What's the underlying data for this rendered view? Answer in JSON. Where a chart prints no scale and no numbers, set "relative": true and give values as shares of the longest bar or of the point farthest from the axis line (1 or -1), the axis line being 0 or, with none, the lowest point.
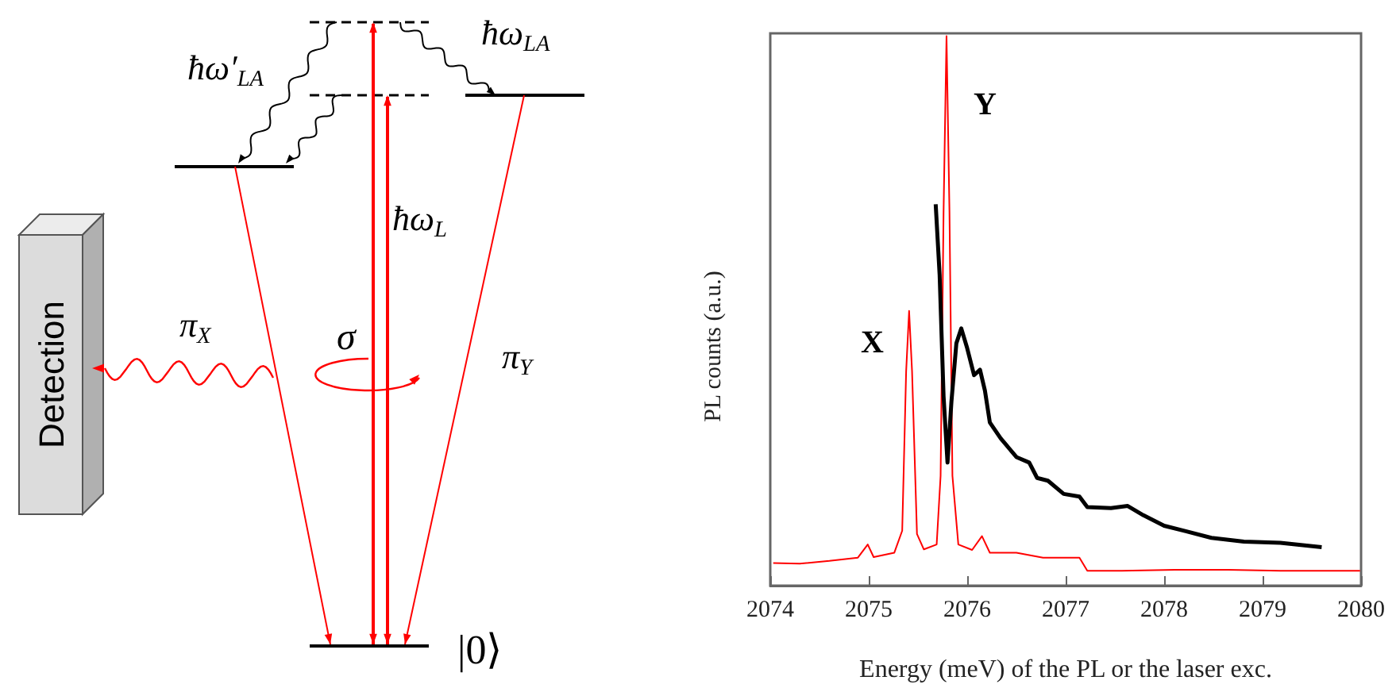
{
  "chart_data": [
    {
      "type": "other",
      "annotations": [
        "ħω′$_{LA}$",
        "ħω$_{LA}$",
        "ħω$_{L}$",
        "π$_{X}$",
        "σ",
        "π$_{Y}$",
        "Detection",
        "|0⟩"
      ]
    },
    {
      "type": "line",
      "xlabel": "Energy (meV) of the PL or the laser exc.",
      "ylabel": "PL counts (a.u.)",
      "relative": true,
      "xlim": [
        2074,
        2080
      ],
      "xticks": [
        2074,
        2075,
        2076,
        2077,
        2078,
        2079,
        2080
      ],
      "grid": false,
      "marker": "none",
      "tick_labels": "x",
      "series": [
        {
          "color": "#ff0000",
          "x": [
            2074.03,
            2074.3,
            2074.6,
            2074.89,
            2074.99,
            2075.05,
            2075.26,
            2075.34,
            2075.38,
            2075.41,
            2075.44,
            2075.49,
            2075.56,
            2075.69,
            2075.73,
            2075.76,
            2075.79,
            2075.82,
            2075.85,
            2075.91,
            2076.05,
            2076.15,
            2076.23,
            2076.5,
            2076.77,
            2077.14,
            2077.22,
            2077.57,
            2078.11,
            2078.65,
            2079.18,
            2079.99
          ],
          "values": [
            0.041,
            0.04,
            0.045,
            0.051,
            0.075,
            0.052,
            0.06,
            0.1,
            0.39,
            0.5,
            0.39,
            0.094,
            0.066,
            0.075,
            0.2,
            0.68,
            1.0,
            0.68,
            0.2,
            0.075,
            0.065,
            0.09,
            0.06,
            0.06,
            0.051,
            0.051,
            0.027,
            0.027,
            0.029,
            0.029,
            0.027,
            0.027
          ]
        },
        {
          "color": "#000000",
          "x": [
            2075.68,
            2075.72,
            2075.76,
            2075.8,
            2075.84,
            2075.89,
            2075.94,
            2076.0,
            2076.07,
            2076.13,
            2076.18,
            2076.23,
            2076.34,
            2076.5,
            2076.63,
            2076.71,
            2076.82,
            2076.98,
            2077.14,
            2077.22,
            2077.46,
            2077.63,
            2077.79,
            2078.0,
            2078.22,
            2078.48,
            2078.81,
            2079.18,
            2079.6
          ],
          "values": [
            0.694,
            0.566,
            0.345,
            0.224,
            0.335,
            0.441,
            0.468,
            0.432,
            0.383,
            0.393,
            0.355,
            0.297,
            0.268,
            0.234,
            0.224,
            0.196,
            0.191,
            0.167,
            0.162,
            0.143,
            0.141,
            0.145,
            0.128,
            0.109,
            0.099,
            0.087,
            0.08,
            0.078,
            0.07
          ]
        }
      ],
      "annotations": [
        "X",
        "Y"
      ]
    }
  ]
}
